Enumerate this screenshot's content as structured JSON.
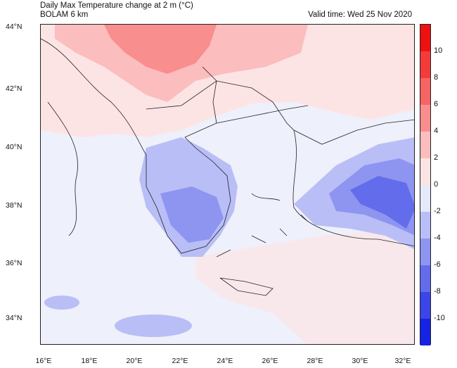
{
  "header": {
    "title_line1": "Daily Max Temperature change at 2 m (°C)",
    "title_line2": "BOLAM 6 km",
    "valid_time": "Valid time: Wed 25 Nov 2020"
  },
  "axes": {
    "lat_labels": [
      "44°N",
      "42°N",
      "40°N",
      "38°N",
      "36°N",
      "34°N"
    ],
    "lon_labels": [
      "16°E",
      "18°E",
      "20°E",
      "22°E",
      "24°E",
      "26°E",
      "28°E",
      "30°E",
      "32°E"
    ]
  },
  "colorbar": {
    "labels": [
      "10",
      "8",
      "6",
      "4",
      "2",
      "0",
      "-2",
      "-4",
      "-6",
      "-8",
      "-10"
    ],
    "colors": [
      "#ee1111",
      "#f43b3b",
      "#f76464",
      "#f98e8e",
      "#fbbdbd",
      "#fde4e4",
      "#e6e8fb",
      "#b9bef6",
      "#8e95f0",
      "#636ceb",
      "#3b45e8",
      "#1423e4"
    ]
  },
  "map_colors": {
    "sea_base": "#eef0fb",
    "warm_light": "#fde4e4",
    "warm_mid": "#fbbdbd",
    "warm_strong": "#f98e8e",
    "cool_light": "#d9ddfa",
    "cool_mid": "#b9bef6",
    "cool_strong": "#8e95f0",
    "cool_deep": "#636ceb"
  }
}
